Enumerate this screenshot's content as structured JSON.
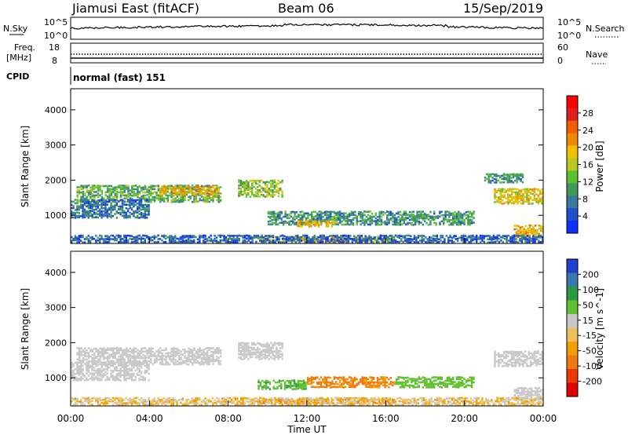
{
  "header": {
    "radar": "Jiamusi East (fitACF)",
    "beam": "Beam 06",
    "date": "15/Sep/2019"
  },
  "strips": {
    "nsky_label": "N.Sky",
    "nsearch_label": "N.Search",
    "nsky_ticks": [
      "10^5",
      "10^0"
    ],
    "nsearch_ticks": [
      "10^5",
      "10^0"
    ],
    "freq_label_line1": "Freq.",
    "freq_label_line2": "[MHz]",
    "freq_ticks": [
      "18",
      "8"
    ],
    "nave_label": "Nave",
    "nave_ticks": [
      "60",
      "0"
    ],
    "cpid_label": "CPID",
    "cpid_value": "normal (fast) 151"
  },
  "x_axis": {
    "label": "Time UT",
    "ticks": [
      "00:00",
      "04:00",
      "08:00",
      "12:00",
      "16:00",
      "20:00",
      "00:00"
    ]
  },
  "colors": {
    "power": [
      "#1030ff",
      "#2050c8",
      "#3a78a0",
      "#3f9a5a",
      "#5cc030",
      "#b8c820",
      "#f0c000",
      "#f08a00",
      "#f06000",
      "#e02020",
      "#ff0000"
    ],
    "velocity": [
      "#e00000",
      "#ee3a00",
      "#f07a10",
      "#f0a000",
      "#f0c060",
      "#c8c8c8",
      "#60c030",
      "#2a9a40",
      "#3878b0",
      "#2040d0"
    ]
  },
  "chart_data": [
    {
      "type": "heatmap",
      "panel": "power",
      "ylabel": "Slant Range [km]",
      "yticks": [
        "1000",
        "2000",
        "3000",
        "4000"
      ],
      "ylim": [
        200,
        4600
      ],
      "xlim_hours": [
        0,
        24
      ],
      "colorbar_label": "Power [dB]",
      "colorbar_ticks": [
        "4",
        "8",
        "12",
        "16",
        "20",
        "24",
        "28"
      ],
      "regions": [
        {
          "t": [
            0.3,
            7.7
          ],
          "r": [
            1350,
            1850
          ],
          "v": 12
        },
        {
          "t": [
            4.5,
            7.6
          ],
          "r": [
            1550,
            1800
          ],
          "v": 20
        },
        {
          "t": [
            0.0,
            4.0
          ],
          "r": [
            900,
            1450
          ],
          "v": 7
        },
        {
          "t": [
            8.5,
            10.8
          ],
          "r": [
            1500,
            2000
          ],
          "v": 14
        },
        {
          "t": [
            10.0,
            20.5
          ],
          "r": [
            700,
            1100
          ],
          "v": 10
        },
        {
          "t": [
            11.5,
            13.5
          ],
          "r": [
            650,
            850
          ],
          "v": 20
        },
        {
          "t": [
            9.5,
            16.5
          ],
          "r": [
            250,
            400
          ],
          "v": 18
        },
        {
          "t": [
            12.5,
            14.0
          ],
          "r": [
            220,
            330
          ],
          "v": 26
        },
        {
          "t": [
            21.5,
            24.0
          ],
          "r": [
            1300,
            1750
          ],
          "v": 18
        },
        {
          "t": [
            21.0,
            23.0
          ],
          "r": [
            1900,
            2150
          ],
          "v": 10
        },
        {
          "t": [
            22.5,
            24.0
          ],
          "r": [
            350,
            700
          ],
          "v": 20
        },
        {
          "t": [
            0.0,
            24.0
          ],
          "r": [
            200,
            420
          ],
          "v": 6
        }
      ]
    },
    {
      "type": "heatmap",
      "panel": "velocity",
      "ylabel": "Slant Range [km]",
      "yticks": [
        "1000",
        "2000",
        "3000",
        "4000"
      ],
      "ylim": [
        200,
        4600
      ],
      "xlim_hours": [
        0,
        24
      ],
      "colorbar_label": "Velocity [m s^-1]",
      "colorbar_ticks": [
        "200",
        "100",
        "50",
        "15",
        "-15",
        "-50",
        "-100",
        "-200"
      ],
      "regions": [
        {
          "t": [
            0.3,
            7.7
          ],
          "r": [
            1350,
            1850
          ],
          "v": 0
        },
        {
          "t": [
            0.0,
            4.0
          ],
          "r": [
            900,
            1450
          ],
          "v": 0
        },
        {
          "t": [
            8.5,
            10.8
          ],
          "r": [
            1500,
            2000
          ],
          "v": 0
        },
        {
          "t": [
            12.0,
            16.5
          ],
          "r": [
            700,
            1000
          ],
          "v": -45
        },
        {
          "t": [
            16.5,
            20.5
          ],
          "r": [
            700,
            1000
          ],
          "v": 35
        },
        {
          "t": [
            9.5,
            12.0
          ],
          "r": [
            650,
            900
          ],
          "v": 40
        },
        {
          "t": [
            9.5,
            16.5
          ],
          "r": [
            250,
            400
          ],
          "v": -40
        },
        {
          "t": [
            21.5,
            24.0
          ],
          "r": [
            1300,
            1750
          ],
          "v": 0
        },
        {
          "t": [
            22.5,
            24.0
          ],
          "r": [
            350,
            700
          ],
          "v": 0
        },
        {
          "t": [
            0.0,
            24.0
          ],
          "r": [
            200,
            420
          ],
          "v": -20
        }
      ]
    }
  ]
}
